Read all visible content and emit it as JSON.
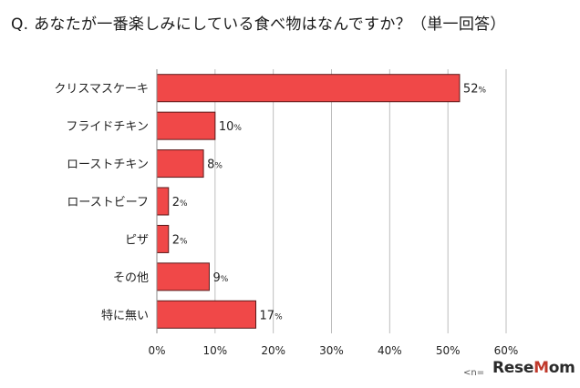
{
  "title": "Q. あなたが一番楽しみにしている食べ物はなんですか？（単一回答）",
  "chart_data": {
    "type": "bar",
    "orientation": "horizontal",
    "title": "Q. あなたが一番楽しみにしている食べ物はなんですか？（単一回答）",
    "categories": [
      "クリスマスケーキ",
      "フライドチキン",
      "ローストチキン",
      "ローストビーフ",
      "ピザ",
      "その他",
      "特に無い"
    ],
    "values": [
      52,
      10,
      8,
      2,
      2,
      9,
      17
    ],
    "unit": "%",
    "xlim": [
      0,
      60
    ],
    "xticks": [
      0,
      10,
      20,
      30,
      40,
      50,
      60
    ],
    "tick_labels": [
      "0%",
      "10%",
      "20%",
      "30%",
      "40%",
      "50%",
      "60%"
    ],
    "grid": true,
    "bar_color": "#f04848",
    "bar_edge_color": "#5a1a1a",
    "legend": "none"
  },
  "footnote": "<n=",
  "logo": {
    "prefix": "Rese",
    "o_letter": "M",
    "suffix": "om"
  }
}
